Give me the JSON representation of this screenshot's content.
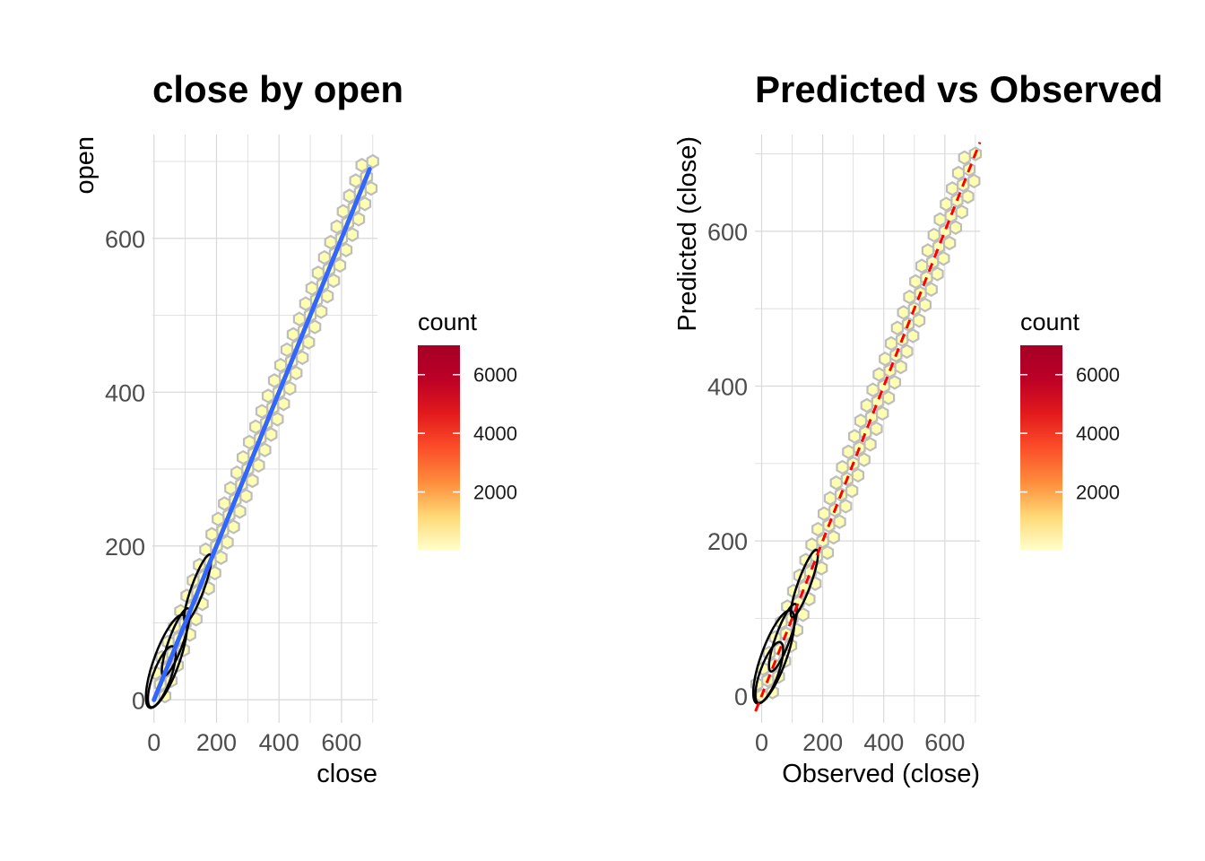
{
  "colors": {
    "grid": "#d9d9d9",
    "hex_fill": "#ffffb2",
    "hex_stroke": "#bdbdbd",
    "fit_line": "#3366ff",
    "reference_line": "#ff0000",
    "contour": "#000000",
    "gradient": [
      "#ffffcc",
      "#fed976",
      "#fd8d3c",
      "#fc4e2a",
      "#e31a1c",
      "#bd0026",
      "#a50026"
    ]
  },
  "chart_data": [
    {
      "type": "scatter",
      "geom": "hexbin",
      "title": "close by open",
      "xlabel": "close",
      "ylabel": "open",
      "xlim": [
        -5,
        715
      ],
      "ylim": [
        -30,
        735
      ],
      "x_ticks": [
        0,
        200,
        400,
        600
      ],
      "y_ticks": [
        0,
        200,
        400,
        600
      ],
      "grid": true,
      "legend": {
        "title": "count",
        "position": "right",
        "ticks": [
          2000,
          4000,
          6000
        ],
        "range": [
          0,
          7000
        ]
      },
      "overlays": [
        "linear fit line",
        "density contours"
      ],
      "series": [
        {
          "name": "hexbin",
          "x": [
            0,
            20,
            40,
            60,
            80,
            100,
            120,
            140,
            160,
            180,
            200,
            220,
            240,
            260,
            280,
            300,
            320,
            340,
            360,
            380,
            400,
            420,
            440,
            460,
            480,
            500,
            520,
            540,
            560,
            580,
            600,
            620,
            640,
            660,
            680,
            700
          ],
          "y": [
            0,
            20,
            40,
            60,
            80,
            100,
            120,
            140,
            160,
            180,
            200,
            220,
            240,
            260,
            280,
            300,
            320,
            340,
            360,
            380,
            400,
            420,
            440,
            460,
            480,
            500,
            520,
            540,
            560,
            580,
            600,
            620,
            640,
            660,
            680,
            700
          ]
        }
      ],
      "fit": {
        "x": [
          0,
          690
        ],
        "y": [
          0,
          690
        ]
      }
    },
    {
      "type": "scatter",
      "geom": "hexbin",
      "title": "Predicted vs Observed",
      "xlabel": "Observed (close)",
      "ylabel": "Predicted (close)",
      "xlim": [
        -22,
        715
      ],
      "ylim": [
        -35,
        725
      ],
      "x_ticks": [
        0,
        200,
        400,
        600
      ],
      "y_ticks": [
        0,
        200,
        400,
        600
      ],
      "grid": true,
      "legend": {
        "title": "count",
        "position": "right",
        "ticks": [
          2000,
          4000,
          6000
        ],
        "range": [
          0,
          7000
        ]
      },
      "overlays": [
        "y = x reference line",
        "density contours"
      ],
      "series": [
        {
          "name": "hexbin",
          "x": [
            0,
            20,
            40,
            60,
            80,
            100,
            120,
            140,
            160,
            180,
            200,
            220,
            240,
            260,
            280,
            300,
            320,
            340,
            360,
            380,
            400,
            420,
            440,
            460,
            480,
            500,
            520,
            540,
            560,
            580,
            600,
            620,
            640,
            660,
            680,
            700
          ],
          "y": [
            0,
            20,
            40,
            60,
            80,
            100,
            120,
            140,
            160,
            180,
            200,
            220,
            240,
            260,
            280,
            300,
            320,
            340,
            360,
            380,
            400,
            420,
            440,
            460,
            480,
            500,
            520,
            540,
            560,
            580,
            600,
            620,
            640,
            660,
            680,
            700
          ]
        }
      ],
      "reference": {
        "x": [
          -20,
          715
        ],
        "y": [
          -20,
          715
        ]
      }
    }
  ]
}
